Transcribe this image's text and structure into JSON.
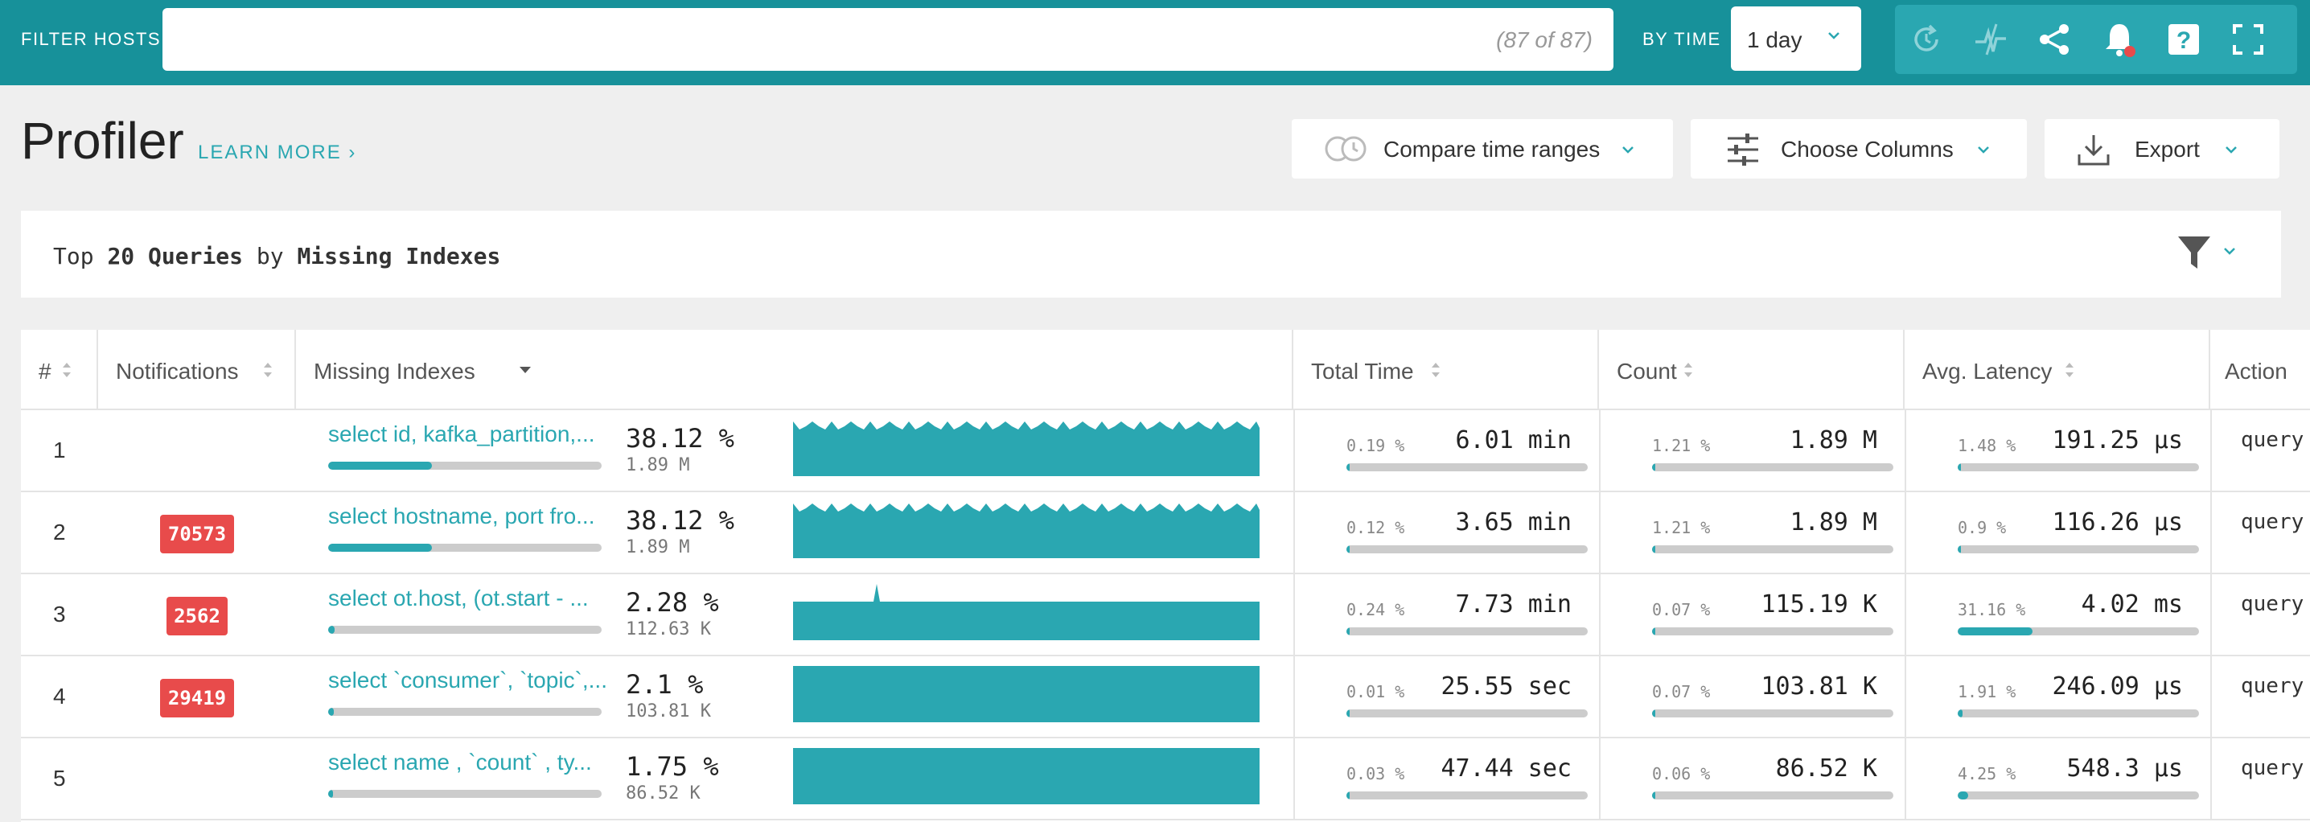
{
  "topbar": {
    "filter_label": "FILTER HOSTS",
    "filter_value": "",
    "filter_count": "(87 of 87)",
    "bytime_label": "BY TIME",
    "time_value": "1 day",
    "icons": [
      "refresh-icon",
      "activity-icon",
      "share-icon",
      "notification-bell-icon",
      "help-icon",
      "fullscreen-icon"
    ],
    "accent": "#17919a",
    "icon_group_color": "#2aa7b1",
    "alert_dot_color": "#e84b4b"
  },
  "header": {
    "title": "Profiler",
    "learn_more": "LEARN MORE",
    "buttons": {
      "compare": "Compare time ranges",
      "columns": "Choose Columns",
      "export": "Export"
    }
  },
  "query": {
    "prefix": "Top",
    "count": "20 Queries",
    "by": "by",
    "metric": "Missing Indexes"
  },
  "table": {
    "columns": [
      "#",
      "Notifications",
      "Missing Indexes",
      "Total Time",
      "Count",
      "Avg. Latency",
      "Action"
    ],
    "rows": [
      {
        "num": "1",
        "badge": "",
        "query": "select id, kafka_partition,...",
        "pct": "38.12 %",
        "count_sub": "1.89 M",
        "fraction": 0.38,
        "spark": "busy",
        "tt_pct": "0.19 %",
        "tt_val": "6.01 min",
        "tt_frac": 0.0019,
        "c_pct": "1.21 %",
        "c_val": "1.89 M",
        "c_frac": 0.0121,
        "l_pct": "1.48 %",
        "l_val": "191.25 µs",
        "l_frac": 0.0148,
        "action": "query"
      },
      {
        "num": "2",
        "badge": "70573",
        "query": "select hostname, port fro...",
        "pct": "38.12 %",
        "count_sub": "1.89 M",
        "fraction": 0.38,
        "spark": "busy",
        "tt_pct": "0.12 %",
        "tt_val": "3.65 min",
        "tt_frac": 0.0012,
        "c_pct": "1.21 %",
        "c_val": "1.89 M",
        "c_frac": 0.0121,
        "l_pct": "0.9 %",
        "l_val": "116.26 µs",
        "l_frac": 0.009,
        "action": "query"
      },
      {
        "num": "3",
        "badge": "2562",
        "query": "select ot.host, (ot.start - ...",
        "pct": "2.28 %",
        "count_sub": "112.63 K",
        "fraction": 0.0228,
        "spark": "spike",
        "tt_pct": "0.24 %",
        "tt_val": "7.73 min",
        "tt_frac": 0.0024,
        "c_pct": "0.07 %",
        "c_val": "115.19 K",
        "c_frac": 0.0007,
        "l_pct": "31.16 %",
        "l_val": "4.02 ms",
        "l_frac": 0.3116,
        "action": "query"
      },
      {
        "num": "4",
        "badge": "29419",
        "query": "select `consumer`, `topic`,...",
        "pct": "2.1 %",
        "count_sub": "103.81 K",
        "fraction": 0.021,
        "spark": "flat",
        "tt_pct": "0.01 %",
        "tt_val": "25.55 sec",
        "tt_frac": 0.0001,
        "c_pct": "0.07 %",
        "c_val": "103.81 K",
        "c_frac": 0.0007,
        "l_pct": "1.91 %",
        "l_val": "246.09 µs",
        "l_frac": 0.0191,
        "action": "query"
      },
      {
        "num": "5",
        "badge": "",
        "query": "select name , `count` , ty...",
        "pct": "1.75 %",
        "count_sub": "86.52 K",
        "fraction": 0.0175,
        "spark": "flat",
        "tt_pct": "0.03 %",
        "tt_val": "47.44 sec",
        "tt_frac": 0.0003,
        "c_pct": "0.06 %",
        "c_val": "86.52 K",
        "c_frac": 0.0006,
        "l_pct": "4.25 %",
        "l_val": "548.3 µs",
        "l_frac": 0.0425,
        "action": "query"
      }
    ]
  }
}
